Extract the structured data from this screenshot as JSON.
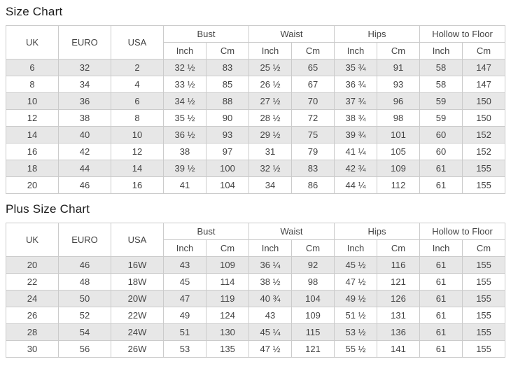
{
  "colors": {
    "stripe_row": "#e7e7e7",
    "border": "#cbcbcb",
    "text": "#444444",
    "title_text": "#1b1b1b",
    "background": "#ffffff"
  },
  "chart_data": [
    {
      "type": "table",
      "title": "Size Chart",
      "columns_simple": [
        "UK",
        "EURO",
        "USA"
      ],
      "column_groups": [
        "Bust",
        "Waist",
        "Hips",
        "Hollow to Floor"
      ],
      "subheaders": [
        "Inch",
        "Cm",
        "Inch",
        "Cm",
        "Inch",
        "Cm",
        "Inch",
        "Cm"
      ],
      "rows": [
        [
          "6",
          "32",
          "2",
          "32 ½",
          "83",
          "25 ½",
          "65",
          "35 ¾",
          "91",
          "58",
          "147"
        ],
        [
          "8",
          "34",
          "4",
          "33 ½",
          "85",
          "26 ½",
          "67",
          "36 ¾",
          "93",
          "58",
          "147"
        ],
        [
          "10",
          "36",
          "6",
          "34 ½",
          "88",
          "27 ½",
          "70",
          "37 ¾",
          "96",
          "59",
          "150"
        ],
        [
          "12",
          "38",
          "8",
          "35 ½",
          "90",
          "28 ½",
          "72",
          "38 ¾",
          "98",
          "59",
          "150"
        ],
        [
          "14",
          "40",
          "10",
          "36 ½",
          "93",
          "29 ½",
          "75",
          "39 ¾",
          "101",
          "60",
          "152"
        ],
        [
          "16",
          "42",
          "12",
          "38",
          "97",
          "31",
          "79",
          "41 ¼",
          "105",
          "60",
          "152"
        ],
        [
          "18",
          "44",
          "14",
          "39 ½",
          "100",
          "32 ½",
          "83",
          "42 ¾",
          "109",
          "61",
          "155"
        ],
        [
          "20",
          "46",
          "16",
          "41",
          "104",
          "34",
          "86",
          "44 ¼",
          "112",
          "61",
          "155"
        ]
      ]
    },
    {
      "type": "table",
      "title": "Plus Size Chart",
      "columns_simple": [
        "UK",
        "EURO",
        "USA"
      ],
      "column_groups": [
        "Bust",
        "Waist",
        "Hips",
        "Hollow to Floor"
      ],
      "subheaders": [
        "Inch",
        "Cm",
        "Inch",
        "Cm",
        "Inch",
        "Cm",
        "Inch",
        "Cm"
      ],
      "rows": [
        [
          "20",
          "46",
          "16W",
          "43",
          "109",
          "36 ¼",
          "92",
          "45 ½",
          "116",
          "61",
          "155"
        ],
        [
          "22",
          "48",
          "18W",
          "45",
          "114",
          "38 ½",
          "98",
          "47 ½",
          "121",
          "61",
          "155"
        ],
        [
          "24",
          "50",
          "20W",
          "47",
          "119",
          "40 ¾",
          "104",
          "49 ½",
          "126",
          "61",
          "155"
        ],
        [
          "26",
          "52",
          "22W",
          "49",
          "124",
          "43",
          "109",
          "51 ½",
          "131",
          "61",
          "155"
        ],
        [
          "28",
          "54",
          "24W",
          "51",
          "130",
          "45 ¼",
          "115",
          "53 ½",
          "136",
          "61",
          "155"
        ],
        [
          "30",
          "56",
          "26W",
          "53",
          "135",
          "47 ½",
          "121",
          "55 ½",
          "141",
          "61",
          "155"
        ]
      ]
    }
  ]
}
